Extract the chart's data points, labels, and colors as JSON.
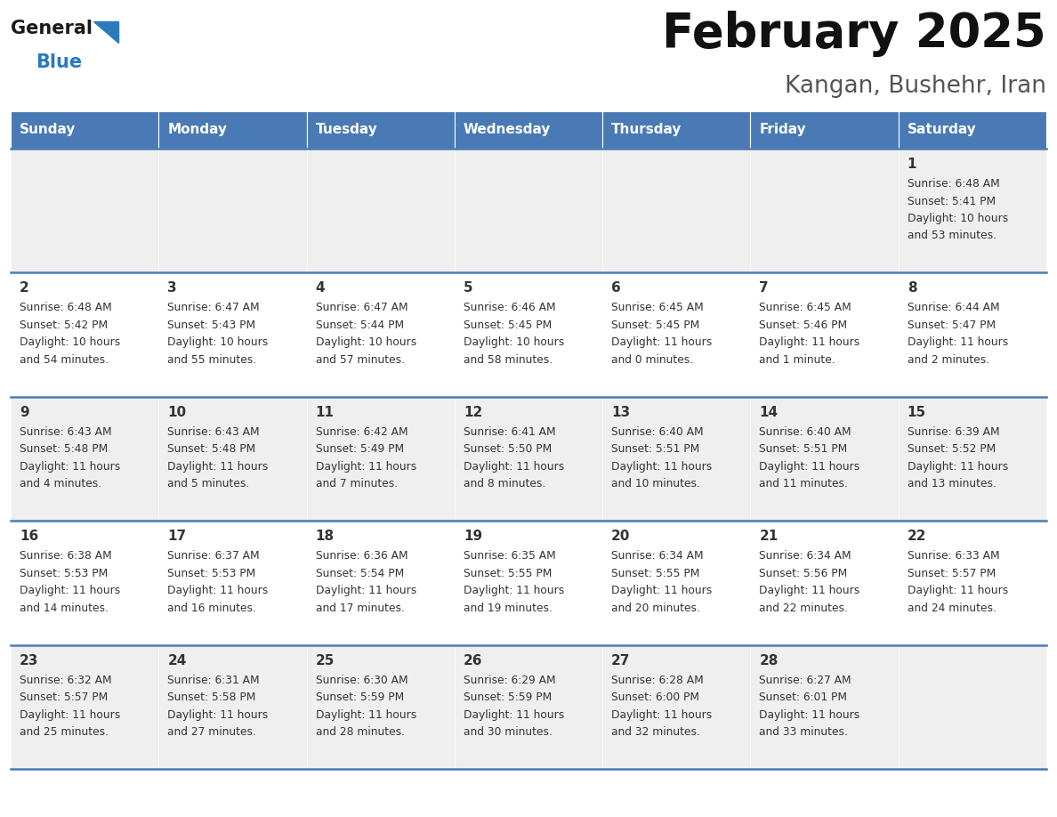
{
  "title": "February 2025",
  "subtitle": "Kangan, Bushehr, Iran",
  "header_color": "#4a7ab5",
  "header_text_color": "#ffffff",
  "day_names": [
    "Sunday",
    "Monday",
    "Tuesday",
    "Wednesday",
    "Thursday",
    "Friday",
    "Saturday"
  ],
  "bg_color": "#ffffff",
  "cell_bg_gray": "#efefef",
  "cell_bg_white": "#ffffff",
  "divider_color": "#4a7ab5",
  "text_color": "#333333",
  "logo_general_color": "#1a1a1a",
  "logo_blue_color": "#2a7abf",
  "calendar": [
    [
      null,
      null,
      null,
      null,
      null,
      null,
      {
        "day": 1,
        "sunrise": "6:48 AM",
        "sunset": "5:41 PM",
        "daylight_a": "Daylight: 10 hours",
        "daylight_b": "and 53 minutes."
      }
    ],
    [
      {
        "day": 2,
        "sunrise": "6:48 AM",
        "sunset": "5:42 PM",
        "daylight_a": "Daylight: 10 hours",
        "daylight_b": "and 54 minutes."
      },
      {
        "day": 3,
        "sunrise": "6:47 AM",
        "sunset": "5:43 PM",
        "daylight_a": "Daylight: 10 hours",
        "daylight_b": "and 55 minutes."
      },
      {
        "day": 4,
        "sunrise": "6:47 AM",
        "sunset": "5:44 PM",
        "daylight_a": "Daylight: 10 hours",
        "daylight_b": "and 57 minutes."
      },
      {
        "day": 5,
        "sunrise": "6:46 AM",
        "sunset": "5:45 PM",
        "daylight_a": "Daylight: 10 hours",
        "daylight_b": "and 58 minutes."
      },
      {
        "day": 6,
        "sunrise": "6:45 AM",
        "sunset": "5:45 PM",
        "daylight_a": "Daylight: 11 hours",
        "daylight_b": "and 0 minutes."
      },
      {
        "day": 7,
        "sunrise": "6:45 AM",
        "sunset": "5:46 PM",
        "daylight_a": "Daylight: 11 hours",
        "daylight_b": "and 1 minute."
      },
      {
        "day": 8,
        "sunrise": "6:44 AM",
        "sunset": "5:47 PM",
        "daylight_a": "Daylight: 11 hours",
        "daylight_b": "and 2 minutes."
      }
    ],
    [
      {
        "day": 9,
        "sunrise": "6:43 AM",
        "sunset": "5:48 PM",
        "daylight_a": "Daylight: 11 hours",
        "daylight_b": "and 4 minutes."
      },
      {
        "day": 10,
        "sunrise": "6:43 AM",
        "sunset": "5:48 PM",
        "daylight_a": "Daylight: 11 hours",
        "daylight_b": "and 5 minutes."
      },
      {
        "day": 11,
        "sunrise": "6:42 AM",
        "sunset": "5:49 PM",
        "daylight_a": "Daylight: 11 hours",
        "daylight_b": "and 7 minutes."
      },
      {
        "day": 12,
        "sunrise": "6:41 AM",
        "sunset": "5:50 PM",
        "daylight_a": "Daylight: 11 hours",
        "daylight_b": "and 8 minutes."
      },
      {
        "day": 13,
        "sunrise": "6:40 AM",
        "sunset": "5:51 PM",
        "daylight_a": "Daylight: 11 hours",
        "daylight_b": "and 10 minutes."
      },
      {
        "day": 14,
        "sunrise": "6:40 AM",
        "sunset": "5:51 PM",
        "daylight_a": "Daylight: 11 hours",
        "daylight_b": "and 11 minutes."
      },
      {
        "day": 15,
        "sunrise": "6:39 AM",
        "sunset": "5:52 PM",
        "daylight_a": "Daylight: 11 hours",
        "daylight_b": "and 13 minutes."
      }
    ],
    [
      {
        "day": 16,
        "sunrise": "6:38 AM",
        "sunset": "5:53 PM",
        "daylight_a": "Daylight: 11 hours",
        "daylight_b": "and 14 minutes."
      },
      {
        "day": 17,
        "sunrise": "6:37 AM",
        "sunset": "5:53 PM",
        "daylight_a": "Daylight: 11 hours",
        "daylight_b": "and 16 minutes."
      },
      {
        "day": 18,
        "sunrise": "6:36 AM",
        "sunset": "5:54 PM",
        "daylight_a": "Daylight: 11 hours",
        "daylight_b": "and 17 minutes."
      },
      {
        "day": 19,
        "sunrise": "6:35 AM",
        "sunset": "5:55 PM",
        "daylight_a": "Daylight: 11 hours",
        "daylight_b": "and 19 minutes."
      },
      {
        "day": 20,
        "sunrise": "6:34 AM",
        "sunset": "5:55 PM",
        "daylight_a": "Daylight: 11 hours",
        "daylight_b": "and 20 minutes."
      },
      {
        "day": 21,
        "sunrise": "6:34 AM",
        "sunset": "5:56 PM",
        "daylight_a": "Daylight: 11 hours",
        "daylight_b": "and 22 minutes."
      },
      {
        "day": 22,
        "sunrise": "6:33 AM",
        "sunset": "5:57 PM",
        "daylight_a": "Daylight: 11 hours",
        "daylight_b": "and 24 minutes."
      }
    ],
    [
      {
        "day": 23,
        "sunrise": "6:32 AM",
        "sunset": "5:57 PM",
        "daylight_a": "Daylight: 11 hours",
        "daylight_b": "and 25 minutes."
      },
      {
        "day": 24,
        "sunrise": "6:31 AM",
        "sunset": "5:58 PM",
        "daylight_a": "Daylight: 11 hours",
        "daylight_b": "and 27 minutes."
      },
      {
        "day": 25,
        "sunrise": "6:30 AM",
        "sunset": "5:59 PM",
        "daylight_a": "Daylight: 11 hours",
        "daylight_b": "and 28 minutes."
      },
      {
        "day": 26,
        "sunrise": "6:29 AM",
        "sunset": "5:59 PM",
        "daylight_a": "Daylight: 11 hours",
        "daylight_b": "and 30 minutes."
      },
      {
        "day": 27,
        "sunrise": "6:28 AM",
        "sunset": "6:00 PM",
        "daylight_a": "Daylight: 11 hours",
        "daylight_b": "and 32 minutes."
      },
      {
        "day": 28,
        "sunrise": "6:27 AM",
        "sunset": "6:01 PM",
        "daylight_a": "Daylight: 11 hours",
        "daylight_b": "and 33 minutes."
      },
      null
    ]
  ],
  "figsize": [
    11.88,
    9.18
  ],
  "dpi": 100
}
